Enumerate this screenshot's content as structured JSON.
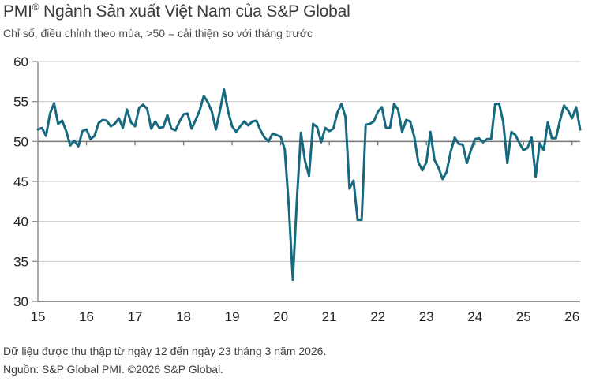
{
  "header": {
    "title_prefix": "PMI",
    "title_reg_mark": "®",
    "title_rest": " Ngành Sản xuất Việt Nam của S&P Global",
    "subtitle": "Chỉ số, điều chỉnh theo mùa, >50 = cải thiện so với tháng trước"
  },
  "footer": {
    "line1": "Dữ liệu được thu thập từ ngày 12 đến ngày 23 tháng 3 năm 2026.",
    "line2": "Nguồn: S&P Global PMI. ©2026 S&P Global."
  },
  "colors": {
    "line": "#17697f",
    "grid": "#c9c9c9",
    "baseline": "#757575",
    "axis": "#8f8f8f",
    "title": "#3a3a3b",
    "subtitle": "#4b4b4d",
    "axis_text": "#231f20",
    "footer": "#3f3f41"
  },
  "chart_data": {
    "type": "line",
    "title": "PMI® Ngành Sản xuất Việt Nam của S&P Global",
    "subtitle": "Chỉ số, điều chỉnh theo mùa, >50 = cải thiện so với tháng trước",
    "xlabel": "",
    "ylabel": "",
    "ylim": [
      30,
      60
    ],
    "y_ticks": [
      60,
      55,
      50,
      45,
      40,
      35,
      30
    ],
    "baseline_value": 50,
    "grid": "horizontal",
    "legend_position": "none",
    "x_start": "2015-01",
    "x_end": "2026-03",
    "months_per_x_tick": 12,
    "x_tick_labels": [
      "15",
      "16",
      "17",
      "18",
      "19",
      "20",
      "21",
      "22",
      "23",
      "24",
      "25",
      "26"
    ],
    "series": [
      {
        "name": "PMI ngành sản xuất Việt Nam",
        "values": [
          51.5,
          51.7,
          50.7,
          53.5,
          54.8,
          52.2,
          52.6,
          51.3,
          49.5,
          50.1,
          49.4,
          51.3,
          51.5,
          50.3,
          50.7,
          52.3,
          52.7,
          52.6,
          51.9,
          52.2,
          52.9,
          51.7,
          54.0,
          52.4,
          51.9,
          54.2,
          54.6,
          54.1,
          51.6,
          52.5,
          51.7,
          51.8,
          53.3,
          51.6,
          51.4,
          52.5,
          53.4,
          53.5,
          51.6,
          52.7,
          53.9,
          55.7,
          54.9,
          53.7,
          51.5,
          53.9,
          56.5,
          53.8,
          51.9,
          51.2,
          51.9,
          52.5,
          52.0,
          52.5,
          52.6,
          51.4,
          50.5,
          50.0,
          51.0,
          50.8,
          50.6,
          49.0,
          41.9,
          32.7,
          42.7,
          51.1,
          47.6,
          45.7,
          52.2,
          51.8,
          49.9,
          51.7,
          51.3,
          51.6,
          53.6,
          54.7,
          53.1,
          44.1,
          45.1,
          40.2,
          40.2,
          52.1,
          52.2,
          52.5,
          53.7,
          54.3,
          51.7,
          51.7,
          54.7,
          54.0,
          51.2,
          52.7,
          52.5,
          50.6,
          47.4,
          46.4,
          47.4,
          51.2,
          47.7,
          46.7,
          45.3,
          46.2,
          48.7,
          50.5,
          49.7,
          49.6,
          47.3,
          48.9,
          50.3,
          50.4,
          49.9,
          50.3,
          50.3,
          54.7,
          54.7,
          52.4,
          47.3,
          51.2,
          50.8,
          49.8,
          48.9,
          49.2,
          50.5,
          45.6,
          49.8,
          48.9,
          52.4,
          50.4,
          50.4,
          52.6,
          54.5,
          53.9,
          52.9,
          54.3,
          51.5
        ]
      }
    ]
  }
}
